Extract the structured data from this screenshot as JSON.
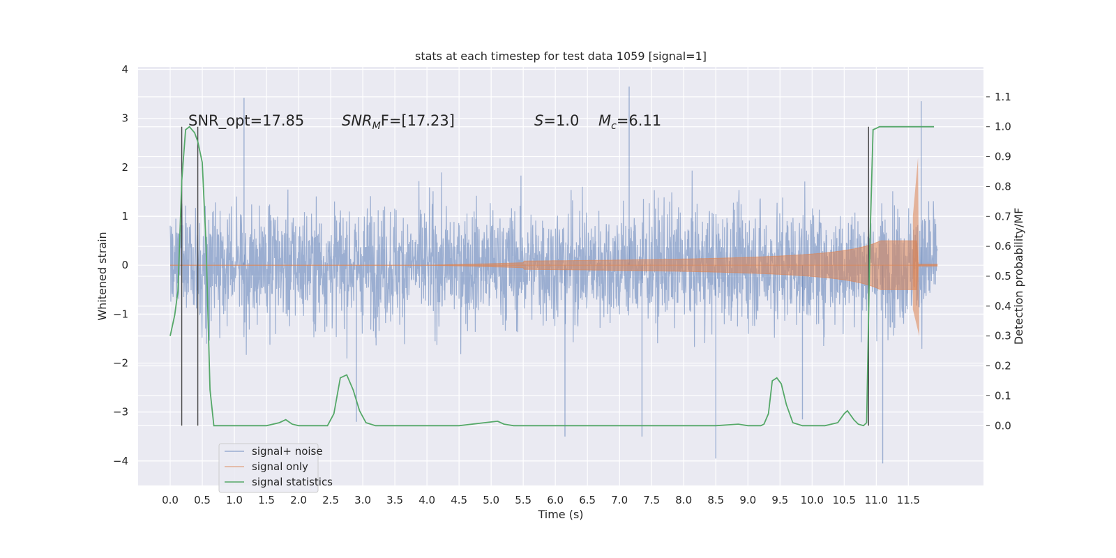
{
  "chart_data": {
    "type": "line",
    "title": "stats at each timestep for test data 1059 [signal=1]",
    "xlabel": "Time (s)",
    "ylabel": "Whitened strain",
    "y2label": "Detection probability/MF",
    "xlim": [
      -0.5,
      12.67
    ],
    "ylim": [
      -4.5,
      4.05
    ],
    "y2lim": [
      -0.2,
      1.2
    ],
    "x_ticks": [
      "0.0",
      "0.5",
      "1.0",
      "1.5",
      "2.0",
      "2.5",
      "3.0",
      "3.5",
      "4.0",
      "4.5",
      "5.0",
      "5.5",
      "6.0",
      "6.5",
      "7.0",
      "7.5",
      "8.0",
      "8.5",
      "9.0",
      "9.5",
      "10.0",
      "10.5",
      "11.0",
      "11.5"
    ],
    "y_ticks": [
      "4",
      "3",
      "2",
      "1",
      "0",
      "−1",
      "−2",
      "−3",
      "−4"
    ],
    "y2_ticks": [
      "1.1",
      "1.0",
      "0.9",
      "0.8",
      "0.7",
      "0.6",
      "0.5",
      "0.4",
      "0.3",
      "0.2",
      "0.1",
      "0.0"
    ],
    "grid": true,
    "legend_position": "lower-left",
    "annotations": {
      "snr_opt": "SNR_opt=17.85",
      "snr_mf_main": "SNR",
      "snr_mf_sub": "M",
      "snr_mf_rest": "F=[17.23]",
      "s_label": "S",
      "s_value": "=1.0",
      "mc_label": "M",
      "mc_sub": "c",
      "mc_value": "=6.11"
    },
    "vlines_x": [
      0.18,
      0.43,
      10.88
    ],
    "vline_range": [
      0.0,
      1.0
    ],
    "series": [
      {
        "name": "signal+ noise",
        "color": "#4c72b0",
        "x_range": [
          0.0,
          11.95
        ],
        "amplitude_envelope": [
          1.6,
          3.2
        ],
        "outliers": [
          [
            1.15,
            3.42
          ],
          [
            2.9,
            -3.2
          ],
          [
            6.15,
            -3.5
          ],
          [
            7.15,
            3.65
          ],
          [
            7.35,
            -3.5
          ],
          [
            8.5,
            -3.95
          ],
          [
            9.85,
            -3.15
          ],
          [
            11.1,
            -4.05
          ],
          [
            11.7,
            3.35
          ]
        ]
      },
      {
        "name": "signal only",
        "color": "#dd8452",
        "x_range": [
          0.0,
          11.95
        ],
        "chirp_peak_time": 11.65,
        "chirp_peak_amplitude": 2.2,
        "chirp_min_amplitude": -1.45
      },
      {
        "name": "signal statistics",
        "color": "#55a868",
        "x": [
          0.0,
          0.07,
          0.12,
          0.18,
          0.24,
          0.3,
          0.38,
          0.43,
          0.5,
          0.56,
          0.62,
          0.68,
          0.72,
          0.8,
          1.0,
          1.5,
          1.7,
          1.8,
          1.9,
          2.0,
          2.1,
          2.3,
          2.45,
          2.55,
          2.65,
          2.75,
          2.85,
          2.95,
          3.05,
          3.2,
          3.5,
          4.0,
          4.5,
          4.9,
          5.1,
          5.2,
          5.35,
          5.6,
          6.0,
          7.0,
          7.5,
          8.0,
          8.5,
          8.85,
          9.0,
          9.2,
          9.25,
          9.32,
          9.38,
          9.45,
          9.52,
          9.6,
          9.7,
          9.85,
          10.0,
          10.2,
          10.4,
          10.5,
          10.55,
          10.65,
          10.72,
          10.8,
          10.85,
          10.9,
          10.95,
          11.0,
          11.05,
          11.15,
          11.5,
          11.9
        ],
        "y": [
          0.3,
          0.37,
          0.45,
          0.82,
          0.99,
          1.0,
          0.98,
          0.95,
          0.88,
          0.6,
          0.12,
          0.0,
          0.0,
          0.0,
          0.0,
          0.0,
          0.01,
          0.02,
          0.005,
          0.0,
          0.0,
          0.0,
          0.0,
          0.04,
          0.16,
          0.17,
          0.12,
          0.05,
          0.01,
          0.0,
          0.0,
          0.0,
          0.0,
          0.01,
          0.015,
          0.005,
          0.0,
          0.0,
          0.0,
          0.0,
          0.0,
          0.0,
          0.0,
          0.005,
          0.0,
          0.0,
          0.005,
          0.04,
          0.15,
          0.16,
          0.14,
          0.07,
          0.01,
          0.0,
          0.0,
          0.0,
          0.01,
          0.04,
          0.05,
          0.02,
          0.005,
          0.0,
          0.01,
          0.6,
          0.99,
          0.995,
          1.0,
          1.0,
          1.0,
          1.0
        ]
      }
    ]
  }
}
